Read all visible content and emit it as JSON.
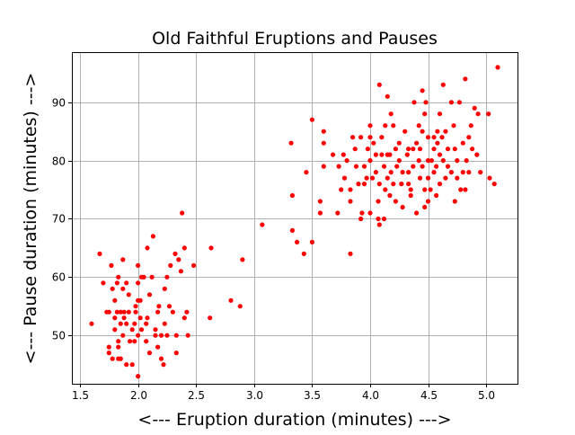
{
  "chart_data": {
    "type": "scatter",
    "title": "Old Faithful Eruptions and Pauses",
    "xlabel": "<--- Eruption duration (minutes) --->",
    "ylabel": "<--- Pause duration (minutes) --->",
    "xlim": [
      1.43,
      5.27
    ],
    "ylim": [
      41.7,
      98.6
    ],
    "x_ticks": [
      1.5,
      2.0,
      2.5,
      3.0,
      3.5,
      4.0,
      4.5,
      5.0
    ],
    "x_tick_labels": [
      "1.5",
      "2.0",
      "2.5",
      "3.0",
      "3.5",
      "4.0",
      "4.5",
      "5.0"
    ],
    "y_ticks": [
      50,
      60,
      70,
      80,
      90
    ],
    "y_tick_labels": [
      "50",
      "60",
      "70",
      "80",
      "90"
    ],
    "grid": true,
    "marker_color": "#ff0000",
    "series": [
      {
        "points": [
          [
            1.6,
            52
          ],
          [
            1.67,
            64
          ],
          [
            1.7,
            59
          ],
          [
            1.73,
            54
          ],
          [
            1.75,
            54
          ],
          [
            1.75,
            47
          ],
          [
            1.75,
            48
          ],
          [
            1.77,
            62
          ],
          [
            1.78,
            58
          ],
          [
            1.78,
            46
          ],
          [
            1.8,
            51
          ],
          [
            1.8,
            53
          ],
          [
            1.8,
            56
          ],
          [
            1.82,
            54
          ],
          [
            1.82,
            59
          ],
          [
            1.83,
            60
          ],
          [
            1.83,
            49
          ],
          [
            1.83,
            48
          ],
          [
            1.83,
            46
          ],
          [
            1.85,
            52
          ],
          [
            1.85,
            46
          ],
          [
            1.85,
            54
          ],
          [
            1.87,
            63
          ],
          [
            1.87,
            58
          ],
          [
            1.87,
            50
          ],
          [
            1.88,
            53
          ],
          [
            1.88,
            54
          ],
          [
            1.9,
            45
          ],
          [
            1.9,
            59
          ],
          [
            1.9,
            52
          ],
          [
            1.92,
            54
          ],
          [
            1.92,
            57
          ],
          [
            1.93,
            49
          ],
          [
            1.95,
            45
          ],
          [
            1.95,
            51
          ],
          [
            1.97,
            52
          ],
          [
            1.97,
            49
          ],
          [
            1.98,
            54
          ],
          [
            1.98,
            55
          ],
          [
            2.0,
            43
          ],
          [
            2.0,
            56
          ],
          [
            2.0,
            62
          ],
          [
            2.0,
            50
          ],
          [
            2.0,
            59
          ],
          [
            2.02,
            56
          ],
          [
            2.02,
            53
          ],
          [
            2.03,
            60
          ],
          [
            2.03,
            51
          ],
          [
            2.05,
            60
          ],
          [
            2.07,
            49
          ],
          [
            2.07,
            52
          ],
          [
            2.08,
            65
          ],
          [
            2.08,
            53
          ],
          [
            2.1,
            57
          ],
          [
            2.1,
            47
          ],
          [
            2.12,
            60
          ],
          [
            2.13,
            67
          ],
          [
            2.15,
            50
          ],
          [
            2.15,
            51
          ],
          [
            2.17,
            54
          ],
          [
            2.17,
            48
          ],
          [
            2.18,
            55
          ],
          [
            2.2,
            46
          ],
          [
            2.2,
            50
          ],
          [
            2.22,
            45
          ],
          [
            2.23,
            52
          ],
          [
            2.23,
            58
          ],
          [
            2.25,
            60
          ],
          [
            2.25,
            50
          ],
          [
            2.27,
            55
          ],
          [
            2.28,
            62
          ],
          [
            2.3,
            54
          ],
          [
            2.32,
            64
          ],
          [
            2.33,
            47
          ],
          [
            2.33,
            50
          ],
          [
            2.35,
            63
          ],
          [
            2.37,
            61
          ],
          [
            2.38,
            71
          ],
          [
            2.4,
            53
          ],
          [
            2.4,
            65
          ],
          [
            2.42,
            54
          ],
          [
            2.43,
            50
          ],
          [
            2.48,
            62
          ],
          [
            2.62,
            53
          ],
          [
            2.63,
            65
          ],
          [
            2.8,
            56
          ],
          [
            2.88,
            55
          ],
          [
            2.9,
            63
          ],
          [
            3.07,
            69
          ],
          [
            3.32,
            83
          ],
          [
            3.33,
            68
          ],
          [
            3.33,
            74
          ],
          [
            3.37,
            66
          ],
          [
            3.43,
            64
          ],
          [
            3.45,
            78
          ],
          [
            3.5,
            66
          ],
          [
            3.5,
            87
          ],
          [
            3.57,
            73
          ],
          [
            3.57,
            71
          ],
          [
            3.6,
            85
          ],
          [
            3.6,
            83
          ],
          [
            3.6,
            79
          ],
          [
            3.68,
            81
          ],
          [
            3.72,
            71
          ],
          [
            3.73,
            79
          ],
          [
            3.75,
            75
          ],
          [
            3.77,
            81
          ],
          [
            3.78,
            77
          ],
          [
            3.8,
            80
          ],
          [
            3.83,
            64
          ],
          [
            3.83,
            73
          ],
          [
            3.83,
            75
          ],
          [
            3.85,
            84
          ],
          [
            3.87,
            82
          ],
          [
            3.88,
            79
          ],
          [
            3.9,
            76
          ],
          [
            3.92,
            70
          ],
          [
            3.92,
            84
          ],
          [
            3.93,
            71
          ],
          [
            3.95,
            79
          ],
          [
            3.95,
            76
          ],
          [
            3.97,
            77
          ],
          [
            3.98,
            82
          ],
          [
            4.0,
            84
          ],
          [
            4.0,
            86
          ],
          [
            4.0,
            80
          ],
          [
            4.0,
            71
          ],
          [
            4.02,
            77
          ],
          [
            4.03,
            83
          ],
          [
            4.05,
            81
          ],
          [
            4.05,
            78
          ],
          [
            4.07,
            73
          ],
          [
            4.07,
            70
          ],
          [
            4.08,
            69
          ],
          [
            4.08,
            93
          ],
          [
            4.08,
            76
          ],
          [
            4.1,
            84
          ],
          [
            4.1,
            81
          ],
          [
            4.12,
            79
          ],
          [
            4.12,
            70
          ],
          [
            4.13,
            75
          ],
          [
            4.13,
            86
          ],
          [
            4.15,
            91
          ],
          [
            4.15,
            81
          ],
          [
            4.15,
            77
          ],
          [
            4.17,
            74
          ],
          [
            4.17,
            81
          ],
          [
            4.18,
            78
          ],
          [
            4.18,
            88
          ],
          [
            4.2,
            86
          ],
          [
            4.2,
            76
          ],
          [
            4.22,
            82
          ],
          [
            4.22,
            73
          ],
          [
            4.23,
            79
          ],
          [
            4.25,
            80
          ],
          [
            4.25,
            83
          ],
          [
            4.27,
            76
          ],
          [
            4.28,
            72
          ],
          [
            4.28,
            78
          ],
          [
            4.3,
            85
          ],
          [
            4.32,
            81
          ],
          [
            4.33,
            78
          ],
          [
            4.33,
            82
          ],
          [
            4.33,
            76
          ],
          [
            4.35,
            75
          ],
          [
            4.35,
            74
          ],
          [
            4.37,
            79
          ],
          [
            4.37,
            82
          ],
          [
            4.38,
            90
          ],
          [
            4.4,
            83
          ],
          [
            4.4,
            71
          ],
          [
            4.42,
            80
          ],
          [
            4.42,
            86
          ],
          [
            4.43,
            77
          ],
          [
            4.43,
            82
          ],
          [
            4.45,
            92
          ],
          [
            4.45,
            85
          ],
          [
            4.45,
            79
          ],
          [
            4.47,
            88
          ],
          [
            4.47,
            75
          ],
          [
            4.47,
            72
          ],
          [
            4.48,
            90
          ],
          [
            4.5,
            80
          ],
          [
            4.5,
            84
          ],
          [
            4.5,
            77
          ],
          [
            4.5,
            73
          ],
          [
            4.52,
            75
          ],
          [
            4.53,
            80
          ],
          [
            4.55,
            82
          ],
          [
            4.55,
            78
          ],
          [
            4.55,
            84
          ],
          [
            4.57,
            79
          ],
          [
            4.57,
            74
          ],
          [
            4.58,
            85
          ],
          [
            4.58,
            83
          ],
          [
            4.6,
            81
          ],
          [
            4.6,
            88
          ],
          [
            4.6,
            76
          ],
          [
            4.62,
            84
          ],
          [
            4.63,
            93
          ],
          [
            4.63,
            80
          ],
          [
            4.65,
            77
          ],
          [
            4.65,
            85
          ],
          [
            4.67,
            82
          ],
          [
            4.67,
            79
          ],
          [
            4.7,
            78
          ],
          [
            4.7,
            90
          ],
          [
            4.72,
            86
          ],
          [
            4.73,
            73
          ],
          [
            4.73,
            82
          ],
          [
            4.75,
            80
          ],
          [
            4.75,
            77
          ],
          [
            4.77,
            90
          ],
          [
            4.78,
            75
          ],
          [
            4.8,
            83
          ],
          [
            4.8,
            78
          ],
          [
            4.82,
            94
          ],
          [
            4.82,
            75
          ],
          [
            4.83,
            80
          ],
          [
            4.85,
            84
          ],
          [
            4.85,
            78
          ],
          [
            4.87,
            86
          ],
          [
            4.88,
            82
          ],
          [
            4.9,
            89
          ],
          [
            4.92,
            81
          ],
          [
            4.93,
            88
          ],
          [
            4.95,
            78
          ],
          [
            5.02,
            88
          ],
          [
            5.03,
            77
          ],
          [
            5.07,
            76
          ],
          [
            5.1,
            96
          ]
        ]
      }
    ]
  }
}
